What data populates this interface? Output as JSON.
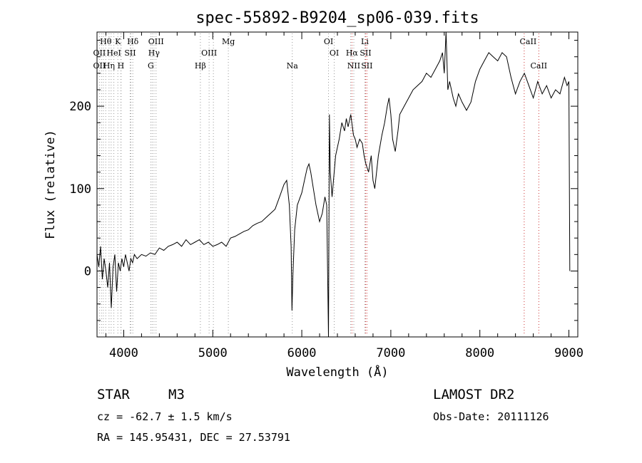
{
  "chart_data": {
    "type": "line",
    "title": "spec-55892-B9204_sp06-039.fits",
    "xlabel": "Wavelength (Å)",
    "ylabel": "Flux (relative)",
    "xlim": [
      3700,
      9100
    ],
    "ylim": [
      -80,
      290
    ],
    "xticks": [
      4000,
      5000,
      6000,
      7000,
      8000,
      9000
    ],
    "yticks": [
      0,
      100,
      200
    ],
    "grid": false,
    "series": [
      {
        "name": "flux",
        "points": [
          [
            3700,
            20
          ],
          [
            3720,
            5
          ],
          [
            3740,
            30
          ],
          [
            3760,
            -10
          ],
          [
            3780,
            15
          ],
          [
            3800,
            0
          ],
          [
            3820,
            -20
          ],
          [
            3840,
            10
          ],
          [
            3860,
            -45
          ],
          [
            3880,
            5
          ],
          [
            3900,
            20
          ],
          [
            3920,
            -25
          ],
          [
            3940,
            10
          ],
          [
            3960,
            0
          ],
          [
            3980,
            15
          ],
          [
            4000,
            5
          ],
          [
            4020,
            20
          ],
          [
            4040,
            10
          ],
          [
            4060,
            0
          ],
          [
            4080,
            15
          ],
          [
            4100,
            10
          ],
          [
            4120,
            20
          ],
          [
            4150,
            15
          ],
          [
            4200,
            20
          ],
          [
            4250,
            18
          ],
          [
            4300,
            22
          ],
          [
            4350,
            20
          ],
          [
            4400,
            28
          ],
          [
            4450,
            25
          ],
          [
            4500,
            30
          ],
          [
            4550,
            32
          ],
          [
            4600,
            35
          ],
          [
            4650,
            30
          ],
          [
            4700,
            38
          ],
          [
            4750,
            32
          ],
          [
            4800,
            35
          ],
          [
            4850,
            38
          ],
          [
            4900,
            32
          ],
          [
            4950,
            35
          ],
          [
            5000,
            30
          ],
          [
            5050,
            32
          ],
          [
            5100,
            35
          ],
          [
            5150,
            30
          ],
          [
            5200,
            40
          ],
          [
            5250,
            42
          ],
          [
            5300,
            45
          ],
          [
            5350,
            48
          ],
          [
            5400,
            50
          ],
          [
            5450,
            55
          ],
          [
            5500,
            58
          ],
          [
            5550,
            60
          ],
          [
            5600,
            65
          ],
          [
            5650,
            70
          ],
          [
            5700,
            75
          ],
          [
            5750,
            90
          ],
          [
            5800,
            105
          ],
          [
            5830,
            110
          ],
          [
            5860,
            80
          ],
          [
            5880,
            30
          ],
          [
            5890,
            -48
          ],
          [
            5900,
            -5
          ],
          [
            5920,
            50
          ],
          [
            5950,
            80
          ],
          [
            6000,
            95
          ],
          [
            6030,
            110
          ],
          [
            6060,
            125
          ],
          [
            6080,
            130
          ],
          [
            6100,
            120
          ],
          [
            6130,
            100
          ],
          [
            6160,
            80
          ],
          [
            6200,
            60
          ],
          [
            6230,
            70
          ],
          [
            6260,
            90
          ],
          [
            6280,
            80
          ],
          [
            6300,
            -80
          ],
          [
            6310,
            190
          ],
          [
            6320,
            120
          ],
          [
            6340,
            90
          ],
          [
            6360,
            115
          ],
          [
            6380,
            140
          ],
          [
            6400,
            150
          ],
          [
            6420,
            160
          ],
          [
            6450,
            180
          ],
          [
            6480,
            170
          ],
          [
            6500,
            185
          ],
          [
            6520,
            175
          ],
          [
            6550,
            190
          ],
          [
            6580,
            165
          ],
          [
            6600,
            160
          ],
          [
            6620,
            150
          ],
          [
            6650,
            160
          ],
          [
            6680,
            155
          ],
          [
            6700,
            140
          ],
          [
            6720,
            130
          ],
          [
            6750,
            120
          ],
          [
            6780,
            140
          ],
          [
            6800,
            110
          ],
          [
            6820,
            100
          ],
          [
            6840,
            120
          ],
          [
            6860,
            140
          ],
          [
            6900,
            165
          ],
          [
            6930,
            180
          ],
          [
            6960,
            200
          ],
          [
            6980,
            210
          ],
          [
            7000,
            190
          ],
          [
            7020,
            160
          ],
          [
            7050,
            145
          ],
          [
            7080,
            170
          ],
          [
            7100,
            190
          ],
          [
            7150,
            200
          ],
          [
            7200,
            210
          ],
          [
            7250,
            220
          ],
          [
            7300,
            225
          ],
          [
            7350,
            230
          ],
          [
            7400,
            240
          ],
          [
            7450,
            235
          ],
          [
            7500,
            245
          ],
          [
            7550,
            255
          ],
          [
            7580,
            265
          ],
          [
            7600,
            240
          ],
          [
            7620,
            290
          ],
          [
            7640,
            220
          ],
          [
            7660,
            230
          ],
          [
            7700,
            210
          ],
          [
            7730,
            200
          ],
          [
            7760,
            215
          ],
          [
            7800,
            205
          ],
          [
            7850,
            195
          ],
          [
            7900,
            205
          ],
          [
            7950,
            230
          ],
          [
            8000,
            245
          ],
          [
            8050,
            255
          ],
          [
            8100,
            265
          ],
          [
            8150,
            260
          ],
          [
            8200,
            255
          ],
          [
            8250,
            265
          ],
          [
            8300,
            260
          ],
          [
            8350,
            235
          ],
          [
            8400,
            215
          ],
          [
            8450,
            230
          ],
          [
            8500,
            240
          ],
          [
            8550,
            225
          ],
          [
            8600,
            210
          ],
          [
            8650,
            230
          ],
          [
            8700,
            215
          ],
          [
            8750,
            225
          ],
          [
            8800,
            210
          ],
          [
            8850,
            220
          ],
          [
            8900,
            215
          ],
          [
            8950,
            235
          ],
          [
            8980,
            225
          ],
          [
            9000,
            230
          ],
          [
            9010,
            0
          ]
        ]
      }
    ],
    "line_labels": [
      {
        "text": "Hθ",
        "x": 3798,
        "row": 1,
        "lines": [
          3798
        ]
      },
      {
        "text": "K",
        "x": 3934,
        "row": 1,
        "lines": [
          3934
        ]
      },
      {
        "text": "Hδ",
        "x": 4102,
        "row": 1,
        "lines": [
          4102
        ]
      },
      {
        "text": "OIII",
        "x": 4363,
        "row": 1,
        "lines": [
          4363
        ]
      },
      {
        "text": "Mg",
        "x": 5175,
        "row": 1,
        "lines": [
          5175
        ]
      },
      {
        "text": "OI",
        "x": 6300,
        "row": 1,
        "lines": [
          6300
        ]
      },
      {
        "text": "Li",
        "x": 6708,
        "row": 1,
        "lines": [
          6708
        ]
      },
      {
        "text": "CaII",
        "x": 8542,
        "row": 1,
        "lines": [
          8498
        ]
      },
      {
        "text": "OII",
        "x": 3727,
        "row": 2,
        "lines": [
          3727
        ]
      },
      {
        "text": "HeI",
        "x": 3889,
        "row": 2,
        "lines": [
          3889
        ]
      },
      {
        "text": "SII",
        "x": 4072,
        "row": 2,
        "lines": [
          4072
        ]
      },
      {
        "text": "Hγ",
        "x": 4340,
        "row": 2,
        "lines": [
          4340
        ]
      },
      {
        "text": "OIII",
        "x": 4959,
        "row": 2,
        "lines": [
          4959
        ]
      },
      {
        "text": "OI",
        "x": 6364,
        "row": 2,
        "lines": [
          6364
        ]
      },
      {
        "text": "Hα",
        "x": 6563,
        "row": 2,
        "lines": [
          6563
        ]
      },
      {
        "text": "SII",
        "x": 6716,
        "row": 2,
        "lines": [
          6716
        ]
      },
      {
        "text": "OII",
        "x": 3727,
        "row": 3,
        "lines": []
      },
      {
        "text": "Hη",
        "x": 3835,
        "row": 3,
        "lines": [
          3835
        ]
      },
      {
        "text": "H",
        "x": 3968,
        "row": 3,
        "lines": [
          3968
        ]
      },
      {
        "text": "G",
        "x": 4304,
        "row": 3,
        "lines": [
          4304
        ]
      },
      {
        "text": "Hβ",
        "x": 4861,
        "row": 3,
        "lines": [
          4861
        ]
      },
      {
        "text": "Na",
        "x": 5893,
        "row": 3,
        "lines": [
          5893
        ]
      },
      {
        "text": "NII",
        "x": 6584,
        "row": 3,
        "lines": [
          6584
        ]
      },
      {
        "text": "SII",
        "x": 6731,
        "row": 3,
        "lines": [
          6731
        ]
      },
      {
        "text": "CaII",
        "x": 8662,
        "row": 3,
        "lines": [
          8662
        ]
      }
    ],
    "red_lines": [
      6563,
      6716,
      6731,
      8498,
      8662
    ],
    "extra_lines": [
      3750,
      3771,
      3859,
      3970,
      4081,
      4320,
      4959,
      5007,
      6548
    ],
    "colors": {
      "axis": "#000000",
      "series": "#000000",
      "line_dotted": "#999999",
      "line_red": "#cc3333"
    }
  },
  "footer": {
    "object_class": "STAR",
    "subclass": "M3",
    "survey": "LAMOST DR2",
    "cz": "cz = -62.7 ± 1.5 km/s",
    "obs_date": "Obs-Date: 20111126",
    "coords": "RA = 145.95431, DEC =  27.53791"
  }
}
